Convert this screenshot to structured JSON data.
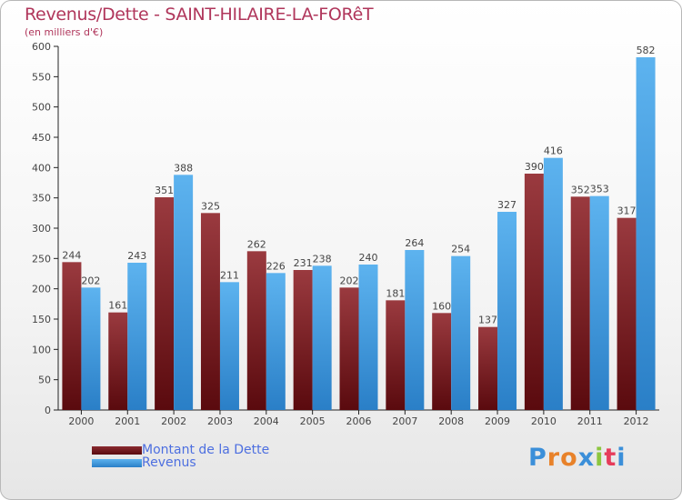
{
  "title": "Revenus/Dette - SAINT-HILAIRE-LA-FORêT",
  "subtitle": "(en milliers d'€)",
  "legend": [
    {
      "label": "Montant de la Dette",
      "color": "#7a1e24"
    },
    {
      "label": "Revenus",
      "color": "#4aa3e6"
    }
  ],
  "logo": "Proxiti",
  "chart_data": {
    "type": "bar",
    "title": "Revenus/Dette - SAINT-HILAIRE-LA-FORêT",
    "ylabel": "(en milliers d'€)",
    "xlabel": "",
    "ylim": [
      0,
      600
    ],
    "yticks": [
      0,
      50,
      100,
      150,
      200,
      250,
      300,
      350,
      400,
      450,
      500,
      550,
      600
    ],
    "categories": [
      "2000",
      "2001",
      "2002",
      "2003",
      "2004",
      "2005",
      "2006",
      "2007",
      "2008",
      "2009",
      "2010",
      "2011",
      "2012"
    ],
    "series": [
      {
        "name": "Montant de la Dette",
        "values": [
          244,
          161,
          351,
          325,
          262,
          231,
          202,
          181,
          160,
          137,
          390,
          352,
          317
        ]
      },
      {
        "name": "Revenus",
        "values": [
          202,
          243,
          388,
          211,
          226,
          238,
          240,
          264,
          254,
          327,
          416,
          353,
          582
        ]
      }
    ],
    "grid": false,
    "legend_position": "bottom-left"
  }
}
